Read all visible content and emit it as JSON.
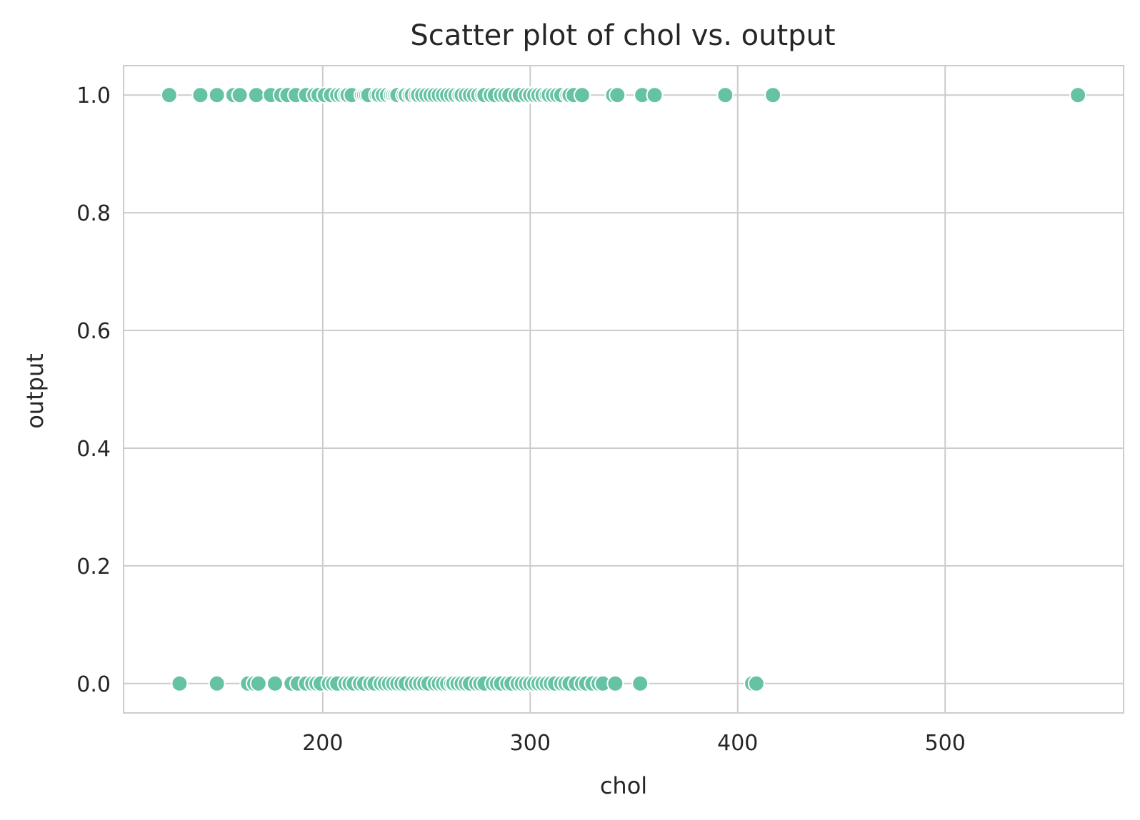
{
  "chart_data": {
    "type": "scatter",
    "title": "Scatter plot of chol vs. output",
    "xlabel": "chol",
    "ylabel": "output",
    "xlim": [
      104,
      586
    ],
    "ylim": [
      -0.05,
      1.05
    ],
    "xticks": [
      200,
      300,
      400,
      500
    ],
    "xtick_labels": [
      "200",
      "300",
      "400",
      "500"
    ],
    "yticks": [
      0.0,
      0.2,
      0.4,
      0.6,
      0.8,
      1.0
    ],
    "ytick_labels": [
      "0.0",
      "0.2",
      "0.4",
      "0.6",
      "0.8",
      "1.0"
    ],
    "grid": true,
    "legend": "none",
    "point_color": "#66c2a5",
    "series": [
      {
        "x": [
          126,
          141,
          149,
          157,
          160,
          168,
          175,
          180,
          183,
          187,
          192,
          196,
          198,
          201,
          204,
          207,
          209,
          211,
          212,
          214,
          219,
          220,
          221,
          222,
          226,
          227,
          229,
          231,
          233,
          234,
          235,
          236,
          239,
          240,
          242,
          243,
          245,
          246,
          248,
          250,
          252,
          254,
          256,
          258,
          260,
          262,
          264,
          266,
          267,
          269,
          271,
          273,
          275,
          277,
          278,
          281,
          283,
          286,
          288,
          290,
          293,
          295,
          298,
          300,
          302,
          304,
          306,
          308,
          309,
          311,
          313,
          315,
          318,
          319,
          321,
          325,
          340,
          342,
          354,
          360,
          394,
          417,
          564
        ],
        "y": [
          1,
          1,
          1,
          1,
          1,
          1,
          1,
          1,
          1,
          1,
          1,
          1,
          1,
          1,
          1,
          1,
          1,
          1,
          1,
          1,
          1,
          1,
          1,
          1,
          1,
          1,
          1,
          1,
          1,
          1,
          1,
          1,
          1,
          1,
          1,
          1,
          1,
          1,
          1,
          1,
          1,
          1,
          1,
          1,
          1,
          1,
          1,
          1,
          1,
          1,
          1,
          1,
          1,
          1,
          1,
          1,
          1,
          1,
          1,
          1,
          1,
          1,
          1,
          1,
          1,
          1,
          1,
          1,
          1,
          1,
          1,
          1,
          1,
          1,
          1,
          1,
          1,
          1,
          1,
          1,
          1,
          1,
          1
        ]
      },
      {
        "x": [
          131,
          149,
          164,
          167,
          169,
          177,
          185,
          188,
          192,
          195,
          197,
          199,
          203,
          205,
          207,
          211,
          213,
          215,
          218,
          220,
          223,
          225,
          228,
          230,
          232,
          234,
          236,
          238,
          240,
          243,
          245,
          247,
          249,
          251,
          254,
          256,
          258,
          260,
          262,
          263,
          265,
          267,
          269,
          271,
          274,
          276,
          278,
          282,
          284,
          286,
          289,
          291,
          294,
          296,
          298,
          300,
          302,
          304,
          306,
          308,
          310,
          312,
          315,
          317,
          319,
          322,
          325,
          327,
          330,
          333,
          335,
          341,
          353,
          407,
          409
        ],
        "y": [
          0,
          0,
          0,
          0,
          0,
          0,
          0,
          0,
          0,
          0,
          0,
          0,
          0,
          0,
          0,
          0,
          0,
          0,
          0,
          0,
          0,
          0,
          0,
          0,
          0,
          0,
          0,
          0,
          0,
          0,
          0,
          0,
          0,
          0,
          0,
          0,
          0,
          0,
          0,
          0,
          0,
          0,
          0,
          0,
          0,
          0,
          0,
          0,
          0,
          0,
          0,
          0,
          0,
          0,
          0,
          0,
          0,
          0,
          0,
          0,
          0,
          0,
          0,
          0,
          0,
          0,
          0,
          0,
          0,
          0,
          0,
          0,
          0,
          0,
          0
        ]
      }
    ]
  }
}
